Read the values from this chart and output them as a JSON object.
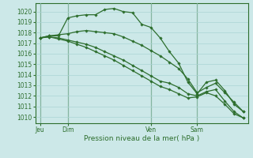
{
  "background_color": "#cce8e8",
  "grid_color": "#aad4d4",
  "line_color": "#2d6e2d",
  "marker_color": "#2d6e2d",
  "yticks": [
    1010,
    1011,
    1012,
    1013,
    1014,
    1015,
    1016,
    1017,
    1018,
    1019,
    1020
  ],
  "ylim": [
    1009.4,
    1020.8
  ],
  "xlabel": "Pression niveau de la mer( hPa )",
  "day_labels": [
    "Jeu",
    "Dim",
    "Ven",
    "Sam"
  ],
  "day_positions": [
    0,
    3,
    12,
    17
  ],
  "xlim": [
    -0.5,
    22.5
  ],
  "series": [
    [
      1017.5,
      1017.7,
      1017.7,
      1019.4,
      1019.6,
      1019.7,
      1019.7,
      1020.2,
      1020.3,
      1020.0,
      1019.9,
      1018.8,
      1018.5,
      1017.5,
      1016.2,
      1015.1,
      1013.3,
      1012.2,
      1013.3,
      1013.5,
      1012.5,
      1011.2,
      1010.5
    ],
    [
      1017.5,
      1017.7,
      1017.8,
      1017.9,
      1018.1,
      1018.2,
      1018.1,
      1018.0,
      1017.9,
      1017.6,
      1017.2,
      1016.8,
      1016.3,
      1015.8,
      1015.2,
      1014.6,
      1013.6,
      1012.3,
      1012.8,
      1013.2,
      1012.3,
      1011.4,
      1010.5
    ],
    [
      1017.5,
      1017.6,
      1017.5,
      1017.3,
      1017.1,
      1016.9,
      1016.6,
      1016.2,
      1015.8,
      1015.4,
      1014.9,
      1014.4,
      1013.9,
      1013.4,
      1013.2,
      1012.8,
      1012.2,
      1012.0,
      1012.4,
      1012.6,
      1011.5,
      1010.5,
      1009.9
    ],
    [
      1017.5,
      1017.6,
      1017.4,
      1017.2,
      1016.9,
      1016.6,
      1016.2,
      1015.8,
      1015.4,
      1014.9,
      1014.4,
      1013.9,
      1013.4,
      1012.9,
      1012.6,
      1012.2,
      1011.8,
      1011.9,
      1012.3,
      1012.0,
      1011.2,
      1010.3,
      1009.9
    ]
  ],
  "tick_fontsize": 5.5,
  "label_fontsize": 6.5,
  "figsize": [
    3.2,
    2.0
  ],
  "dpi": 100
}
